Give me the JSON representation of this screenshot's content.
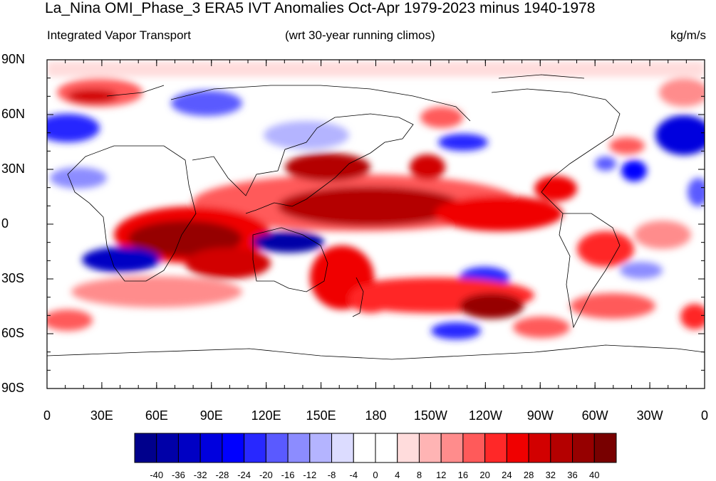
{
  "title": "La_Nina OMI_Phase_3 ERA5 IVT Anomalies Oct-Apr 1979-2023 minus 1940-1978",
  "subtitle_left": "Integrated Vapor Transport",
  "subtitle_center": "(wrt 30-year running climos)",
  "subtitle_right": "kg/m/s",
  "y_ticks": [
    "90N",
    "60N",
    "30N",
    "0",
    "30S",
    "60S",
    "90S"
  ],
  "x_ticks": [
    "0",
    "30E",
    "60E",
    "90E",
    "120E",
    "150E",
    "180",
    "150W",
    "120W",
    "90W",
    "60W",
    "30W",
    "0"
  ],
  "colorbar": {
    "labels": [
      "-40",
      "-36",
      "-32",
      "-28",
      "-24",
      "-20",
      "-16",
      "-12",
      "-8",
      "-4",
      "0",
      "4",
      "8",
      "12",
      "16",
      "20",
      "24",
      "28",
      "32",
      "36",
      "40"
    ],
    "colors": [
      "#00008c",
      "#0000a8",
      "#0000c4",
      "#0000de",
      "#0000ff",
      "#2828ff",
      "#5a5aff",
      "#8c8cff",
      "#b4b4ff",
      "#dcdcff",
      "#ffffff",
      "#ffffff",
      "#ffdcdc",
      "#ffb4b4",
      "#ff8c8c",
      "#ff5a5a",
      "#ff2828",
      "#f00000",
      "#d20000",
      "#b40000",
      "#960000",
      "#780000"
    ]
  },
  "map": {
    "projection": "cylindrical equidistant",
    "lon_range": [
      0,
      360
    ],
    "lat_range": [
      -90,
      90
    ]
  }
}
